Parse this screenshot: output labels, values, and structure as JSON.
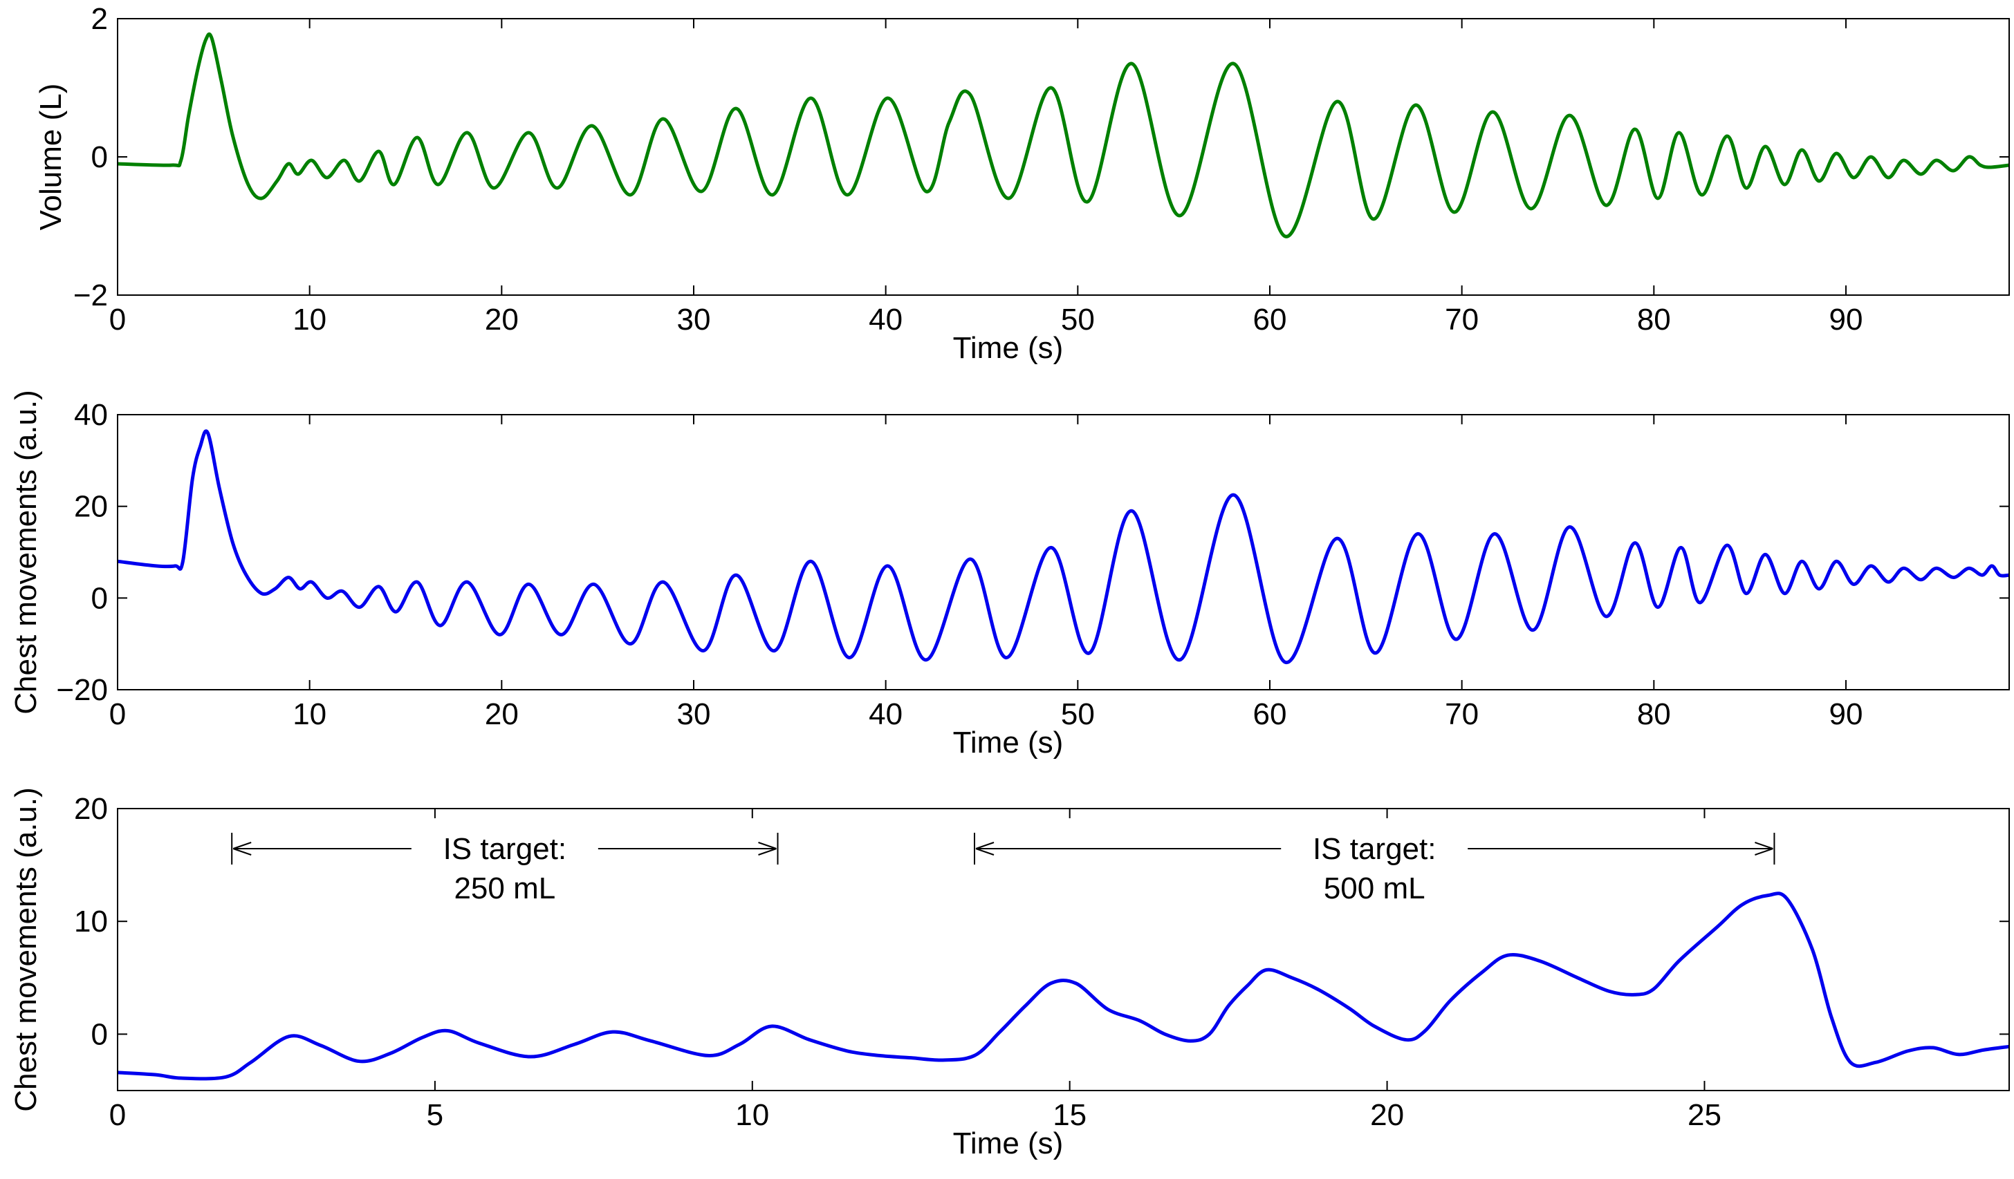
{
  "chart_data": [
    {
      "type": "line",
      "ylabel": "Volume (L)",
      "xlabel": "Time (s)",
      "xlim": [
        0,
        98.5
      ],
      "ylim": [
        -2,
        2
      ],
      "xticks": [
        0,
        10,
        20,
        30,
        40,
        50,
        60,
        70,
        80,
        90
      ],
      "yticks": [
        -2,
        0,
        2
      ],
      "ytick_labels": [
        "−2",
        "0",
        "2"
      ],
      "color": "#008000",
      "series": [
        {
          "name": "Volume",
          "points": [
            [
              0,
              -0.1
            ],
            [
              2.8,
              -0.12
            ],
            [
              3.3,
              -0.05
            ],
            [
              3.7,
              0.6
            ],
            [
              4.2,
              1.3
            ],
            [
              4.6,
              1.7
            ],
            [
              4.9,
              1.72
            ],
            [
              5.4,
              1.1
            ],
            [
              6.0,
              0.3
            ],
            [
              6.8,
              -0.4
            ],
            [
              7.5,
              -0.6
            ],
            [
              8.3,
              -0.35
            ],
            [
              8.9,
              -0.1
            ],
            [
              9.4,
              -0.25
            ],
            [
              10.1,
              -0.05
            ],
            [
              10.9,
              -0.3
            ],
            [
              11.8,
              -0.05
            ],
            [
              12.6,
              -0.35
            ],
            [
              13.6,
              0.08
            ],
            [
              14.4,
              -0.4
            ],
            [
              15.6,
              0.28
            ],
            [
              16.7,
              -0.4
            ],
            [
              18.2,
              0.35
            ],
            [
              19.6,
              -0.45
            ],
            [
              21.4,
              0.35
            ],
            [
              22.9,
              -0.45
            ],
            [
              24.7,
              0.45
            ],
            [
              26.7,
              -0.55
            ],
            [
              28.4,
              0.55
            ],
            [
              30.4,
              -0.5
            ],
            [
              32.2,
              0.7
            ],
            [
              34.1,
              -0.55
            ],
            [
              36.1,
              0.85
            ],
            [
              38.0,
              -0.55
            ],
            [
              40.1,
              0.85
            ],
            [
              42.1,
              -0.5
            ],
            [
              43.3,
              0.5
            ],
            [
              44.4,
              0.9
            ],
            [
              46.4,
              -0.6
            ],
            [
              48.6,
              1.0
            ],
            [
              50.5,
              -0.65
            ],
            [
              52.8,
              1.35
            ],
            [
              55.3,
              -0.85
            ],
            [
              58.1,
              1.35
            ],
            [
              60.8,
              -1.15
            ],
            [
              63.5,
              0.8
            ],
            [
              65.4,
              -0.9
            ],
            [
              67.6,
              0.75
            ],
            [
              69.6,
              -0.8
            ],
            [
              71.6,
              0.65
            ],
            [
              73.6,
              -0.75
            ],
            [
              75.6,
              0.6
            ],
            [
              77.5,
              -0.7
            ],
            [
              79.0,
              0.4
            ],
            [
              80.2,
              -0.6
            ],
            [
              81.3,
              0.35
            ],
            [
              82.5,
              -0.55
            ],
            [
              83.8,
              0.3
            ],
            [
              84.8,
              -0.45
            ],
            [
              85.8,
              0.15
            ],
            [
              86.8,
              -0.4
            ],
            [
              87.7,
              0.1
            ],
            [
              88.6,
              -0.35
            ],
            [
              89.5,
              0.05
            ],
            [
              90.4,
              -0.3
            ],
            [
              91.3,
              0.0
            ],
            [
              92.2,
              -0.3
            ],
            [
              93.0,
              -0.05
            ],
            [
              93.9,
              -0.25
            ],
            [
              94.7,
              -0.05
            ],
            [
              95.6,
              -0.2
            ],
            [
              96.4,
              0.0
            ],
            [
              97.0,
              -0.12
            ],
            [
              97.5,
              -0.15
            ],
            [
              98.5,
              -0.12
            ]
          ]
        }
      ]
    },
    {
      "type": "line",
      "ylabel": "Chest movements (a.u.)",
      "xlabel": "Time (s)",
      "xlim": [
        0,
        98.5
      ],
      "ylim": [
        -20,
        40
      ],
      "xticks": [
        0,
        10,
        20,
        30,
        40,
        50,
        60,
        70,
        80,
        90
      ],
      "yticks": [
        -20,
        0,
        20,
        40
      ],
      "ytick_labels": [
        "−20",
        "0",
        "20",
        "40"
      ],
      "color": "#0000ee",
      "series": [
        {
          "name": "Chest movements",
          "points": [
            [
              0,
              8
            ],
            [
              2.0,
              7
            ],
            [
              3.0,
              7
            ],
            [
              3.4,
              8
            ],
            [
              3.9,
              26
            ],
            [
              4.3,
              33
            ],
            [
              4.7,
              36
            ],
            [
              5.3,
              24
            ],
            [
              6.0,
              12
            ],
            [
              6.7,
              5
            ],
            [
              7.5,
              1
            ],
            [
              8.2,
              2
            ],
            [
              8.9,
              4.5
            ],
            [
              9.5,
              2
            ],
            [
              10.1,
              3.5
            ],
            [
              10.9,
              0
            ],
            [
              11.7,
              1.5
            ],
            [
              12.6,
              -2
            ],
            [
              13.6,
              2.5
            ],
            [
              14.5,
              -3
            ],
            [
              15.6,
              3.5
            ],
            [
              16.8,
              -6
            ],
            [
              18.2,
              3.5
            ],
            [
              19.9,
              -8
            ],
            [
              21.4,
              3
            ],
            [
              23.1,
              -8
            ],
            [
              24.8,
              3
            ],
            [
              26.7,
              -10
            ],
            [
              28.4,
              3.5
            ],
            [
              30.5,
              -11.5
            ],
            [
              32.2,
              5
            ],
            [
              34.2,
              -11.5
            ],
            [
              36.1,
              8
            ],
            [
              38.1,
              -13
            ],
            [
              40.1,
              7
            ],
            [
              42.1,
              -13.5
            ],
            [
              44.4,
              8.5
            ],
            [
              46.3,
              -13
            ],
            [
              48.6,
              11
            ],
            [
              50.6,
              -12
            ],
            [
              52.8,
              19
            ],
            [
              55.3,
              -13.5
            ],
            [
              58.1,
              22.5
            ],
            [
              60.8,
              -14
            ],
            [
              63.5,
              13
            ],
            [
              65.5,
              -12
            ],
            [
              67.7,
              14
            ],
            [
              69.7,
              -9
            ],
            [
              71.7,
              14
            ],
            [
              73.7,
              -7
            ],
            [
              75.6,
              15.5
            ],
            [
              77.5,
              -4
            ],
            [
              79.0,
              12
            ],
            [
              80.2,
              -2
            ],
            [
              81.4,
              11
            ],
            [
              82.4,
              -1
            ],
            [
              83.8,
              11.5
            ],
            [
              84.8,
              1
            ],
            [
              85.8,
              9.5
            ],
            [
              86.8,
              1
            ],
            [
              87.7,
              8
            ],
            [
              88.6,
              2
            ],
            [
              89.5,
              8
            ],
            [
              90.4,
              3
            ],
            [
              91.3,
              7
            ],
            [
              92.2,
              3.5
            ],
            [
              93.0,
              6.5
            ],
            [
              93.9,
              4
            ],
            [
              94.7,
              6.5
            ],
            [
              95.6,
              4.5
            ],
            [
              96.4,
              6.5
            ],
            [
              97.1,
              5
            ],
            [
              97.6,
              7
            ],
            [
              98.0,
              5
            ],
            [
              98.5,
              5
            ]
          ]
        }
      ]
    },
    {
      "type": "line",
      "ylabel": "Chest movements (a.u.)",
      "xlabel": "Time (s)",
      "xlim": [
        0,
        29.8
      ],
      "ylim": [
        -5,
        20
      ],
      "xticks": [
        0,
        5,
        10,
        15,
        20,
        25
      ],
      "yticks": [
        0,
        10,
        20
      ],
      "ytick_labels": [
        "0",
        "10",
        "20"
      ],
      "color": "#0000ee",
      "series": [
        {
          "name": "Chest movements",
          "points": [
            [
              0,
              -3.4
            ],
            [
              0.6,
              -3.6
            ],
            [
              1.0,
              -3.9
            ],
            [
              1.7,
              -3.8
            ],
            [
              2.1,
              -2.5
            ],
            [
              2.7,
              -0.2
            ],
            [
              3.2,
              -1
            ],
            [
              3.8,
              -2.4
            ],
            [
              4.3,
              -1.7
            ],
            [
              4.8,
              -0.3
            ],
            [
              5.2,
              0.3
            ],
            [
              5.7,
              -0.8
            ],
            [
              6.5,
              -2
            ],
            [
              7.2,
              -0.9
            ],
            [
              7.8,
              0.2
            ],
            [
              8.4,
              -0.6
            ],
            [
              9.3,
              -1.9
            ],
            [
              9.8,
              -0.9
            ],
            [
              10.3,
              0.7
            ],
            [
              10.9,
              -0.5
            ],
            [
              11.5,
              -1.5
            ],
            [
              12.0,
              -1.9
            ],
            [
              12.5,
              -2.1
            ],
            [
              13.0,
              -2.3
            ],
            [
              13.5,
              -1.9
            ],
            [
              13.9,
              0.2
            ],
            [
              14.3,
              2.5
            ],
            [
              14.7,
              4.5
            ],
            [
              15.1,
              4.5
            ],
            [
              15.6,
              2.2
            ],
            [
              16.1,
              1.2
            ],
            [
              16.5,
              0
            ],
            [
              16.9,
              -0.6
            ],
            [
              17.2,
              0
            ],
            [
              17.5,
              2.5
            ],
            [
              17.8,
              4.3
            ],
            [
              18.1,
              5.7
            ],
            [
              18.5,
              5
            ],
            [
              18.9,
              4
            ],
            [
              19.4,
              2.3
            ],
            [
              19.8,
              0.7
            ],
            [
              20.3,
              -0.5
            ],
            [
              20.6,
              0.3
            ],
            [
              21.0,
              3
            ],
            [
              21.5,
              5.5
            ],
            [
              21.9,
              7
            ],
            [
              22.4,
              6.5
            ],
            [
              23.0,
              5
            ],
            [
              23.5,
              3.8
            ],
            [
              23.9,
              3.5
            ],
            [
              24.2,
              4
            ],
            [
              24.6,
              6.5
            ],
            [
              25.2,
              9.5
            ],
            [
              25.6,
              11.5
            ],
            [
              26.0,
              12.3
            ],
            [
              26.3,
              12
            ],
            [
              26.7,
              7.5
            ],
            [
              27.0,
              1.5
            ],
            [
              27.3,
              -2.5
            ],
            [
              27.7,
              -2.5
            ],
            [
              28.2,
              -1.5
            ],
            [
              28.6,
              -1.2
            ],
            [
              29.0,
              -1.8
            ],
            [
              29.4,
              -1.4
            ],
            [
              29.8,
              -1.1
            ]
          ]
        }
      ],
      "annotations": [
        {
          "line1": "IS target:",
          "line2": "250 mL",
          "x_from": 1.8,
          "x_to": 10.4,
          "arrow": "double"
        },
        {
          "line1": "IS target:",
          "line2": "500 mL",
          "x_from": 13.5,
          "x_to": 26.1,
          "arrow": "double"
        }
      ]
    }
  ]
}
